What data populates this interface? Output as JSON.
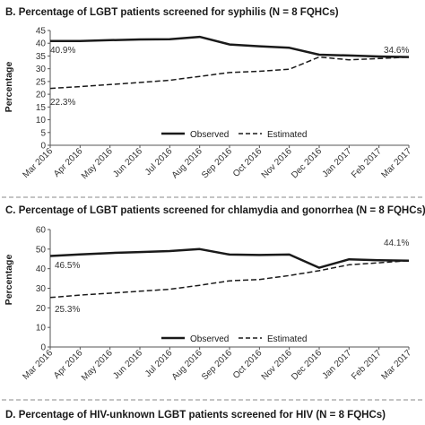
{
  "chart_data": [
    {
      "type": "line",
      "title": "B. Percentage of LGBT patients screened for syphilis (N = 8 FQHCs)",
      "ylabel": "Percentage",
      "ylim": [
        0,
        45
      ],
      "yticks": [
        0,
        5,
        10,
        15,
        20,
        25,
        30,
        35,
        40,
        45
      ],
      "categories": [
        "Mar 2016",
        "Apr 2016",
        "May 2016",
        "Jun 2016",
        "Jul 2016",
        "Aug 2016",
        "Sep 2016",
        "Oct 2016",
        "Nov 2016",
        "Dec 2016",
        "Jan 2017",
        "Feb 2017",
        "Mar 2017"
      ],
      "series": [
        {
          "name": "Observed",
          "style": "solid",
          "values": [
            40.9,
            40.9,
            41.2,
            41.5,
            41.6,
            42.5,
            39.5,
            38.8,
            38.2,
            35.5,
            35.2,
            34.8,
            34.6
          ]
        },
        {
          "name": "Estimated",
          "style": "dashed",
          "values": [
            22.3,
            23.0,
            23.8,
            24.6,
            25.5,
            27.0,
            28.5,
            29.0,
            29.8,
            34.6,
            33.5,
            34.0,
            34.6
          ]
        }
      ],
      "annotations": [
        "40.9%",
        "22.3%",
        "34.6%"
      ],
      "legend_position": "bottom-center",
      "grid": false
    },
    {
      "type": "line",
      "title": "C. Percentage of LGBT patients screened for chlamydia and gonorrhea (N = 8 FQHCs)",
      "ylabel": "Percentage",
      "ylim": [
        0,
        60
      ],
      "yticks": [
        0,
        10,
        20,
        30,
        40,
        50,
        60
      ],
      "categories": [
        "Mar 2016",
        "Apr 2016",
        "May 2016",
        "Jun 2016",
        "Jul 2016",
        "Aug 2016",
        "Sep 2016",
        "Oct 2016",
        "Nov 2016",
        "Dec 2016",
        "Jan 2017",
        "Feb 2017",
        "Mar 2017"
      ],
      "series": [
        {
          "name": "Observed",
          "style": "solid",
          "values": [
            46.5,
            47.3,
            48.0,
            48.5,
            49.0,
            50.0,
            47.2,
            47.0,
            47.2,
            40.5,
            44.8,
            44.3,
            44.1
          ]
        },
        {
          "name": "Estimated",
          "style": "dashed",
          "values": [
            25.3,
            26.5,
            27.5,
            28.5,
            29.5,
            31.5,
            33.8,
            34.5,
            36.5,
            39.0,
            42.0,
            43.0,
            44.1
          ]
        }
      ],
      "annotations": [
        "46.5%",
        "25.3%",
        "44.1%"
      ],
      "legend_position": "bottom-center",
      "grid": false
    },
    {
      "type": "line",
      "title": "D. Percentage of HIV-unknown LGBT patients screened for HIV (N = 8 FQHCs)"
    }
  ]
}
